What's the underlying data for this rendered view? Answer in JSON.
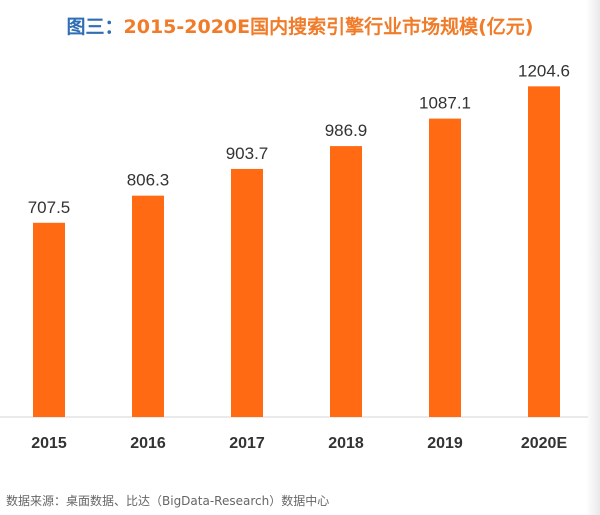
{
  "chart_data": {
    "type": "bar",
    "title_prefix": "图三：",
    "title_main": "2015-2020E国内搜索引擎行业市场规模(亿元)",
    "categories": [
      "2015",
      "2016",
      "2017",
      "2018",
      "2019",
      "2020E"
    ],
    "values": [
      707.5,
      806.3,
      903.7,
      986.9,
      1087.1,
      1204.6
    ],
    "value_labels": [
      "707.5",
      "806.3",
      "903.7",
      "986.9",
      "1087.1",
      "1204.6"
    ],
    "xlabel": "",
    "ylabel": "",
    "ylim": [
      0,
      1250
    ],
    "grid": false,
    "legend": "none",
    "bar_color": "#ff6a13",
    "source": "数据来源：桌面数据、比达（BigData-Research）数据中心"
  }
}
